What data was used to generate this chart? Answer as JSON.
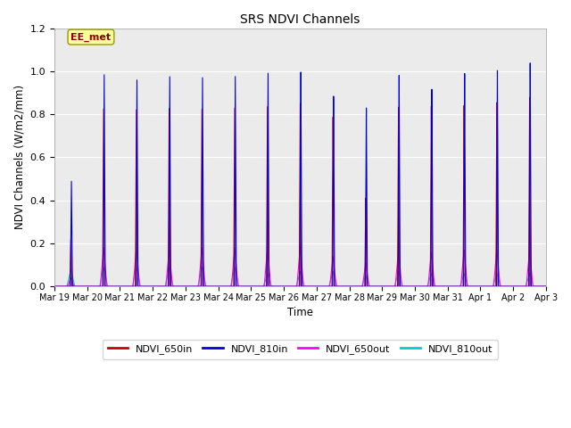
{
  "title": "SRS NDVI Channels",
  "ylabel": "NDVI Channels (W/m2/mm)",
  "xlabel": "Time",
  "ylim": [
    0,
    1.2
  ],
  "annotation": "EE_met",
  "bg_color": "#ebebeb",
  "series": {
    "NDVI_650in": {
      "color": "#cc0000",
      "lw": 0.8
    },
    "NDVI_810in": {
      "color": "#0000dd",
      "lw": 0.8
    },
    "NDVI_650out": {
      "color": "#ff00ff",
      "lw": 0.8
    },
    "NDVI_810out": {
      "color": "#00cccc",
      "lw": 0.8
    }
  },
  "xtick_labels": [
    "Mar 19",
    "Mar 20",
    "Mar 21",
    "Mar 22",
    "Mar 23",
    "Mar 24",
    "Mar 25",
    "Mar 26",
    "Mar 27",
    "Mar 28",
    "Mar 29",
    "Mar 30",
    "Mar 31",
    "Apr 1",
    "Apr 2",
    "Apr 3"
  ],
  "n_days": 15,
  "peaks_650in": [
    0.22,
    0.83,
    0.83,
    0.84,
    0.84,
    0.85,
    0.86,
    0.88,
    0.81,
    0.42,
    0.85,
    0.85,
    0.85,
    0.86,
    0.88
  ],
  "peaks_810in": [
    0.49,
    0.99,
    0.97,
    0.99,
    0.99,
    1.0,
    1.02,
    1.03,
    0.91,
    0.85,
    1.0,
    0.93,
    1.0,
    1.01,
    1.04
  ],
  "peaks_650out": [
    0.04,
    0.18,
    0.18,
    0.17,
    0.18,
    0.18,
    0.18,
    0.19,
    0.14,
    0.11,
    0.17,
    0.16,
    0.17,
    0.17,
    0.17
  ],
  "peaks_810out": [
    0.08,
    0.09,
    0.09,
    0.09,
    0.09,
    0.09,
    0.06,
    0.07,
    0.07,
    0.05,
    0.07,
    0.06,
    0.06,
    0.06,
    0.06
  ],
  "peak_offsets_650in": [
    0.0,
    0.0,
    0.0,
    0.0,
    0.0,
    0.0,
    0.0,
    0.0,
    0.0,
    0.0,
    0.0,
    0.0,
    0.0,
    0.0,
    0.0
  ],
  "peak_offsets_810in": [
    0.02,
    0.02,
    0.02,
    0.02,
    0.02,
    0.02,
    0.02,
    0.02,
    0.02,
    0.02,
    0.02,
    0.02,
    0.02,
    0.02,
    0.02
  ]
}
